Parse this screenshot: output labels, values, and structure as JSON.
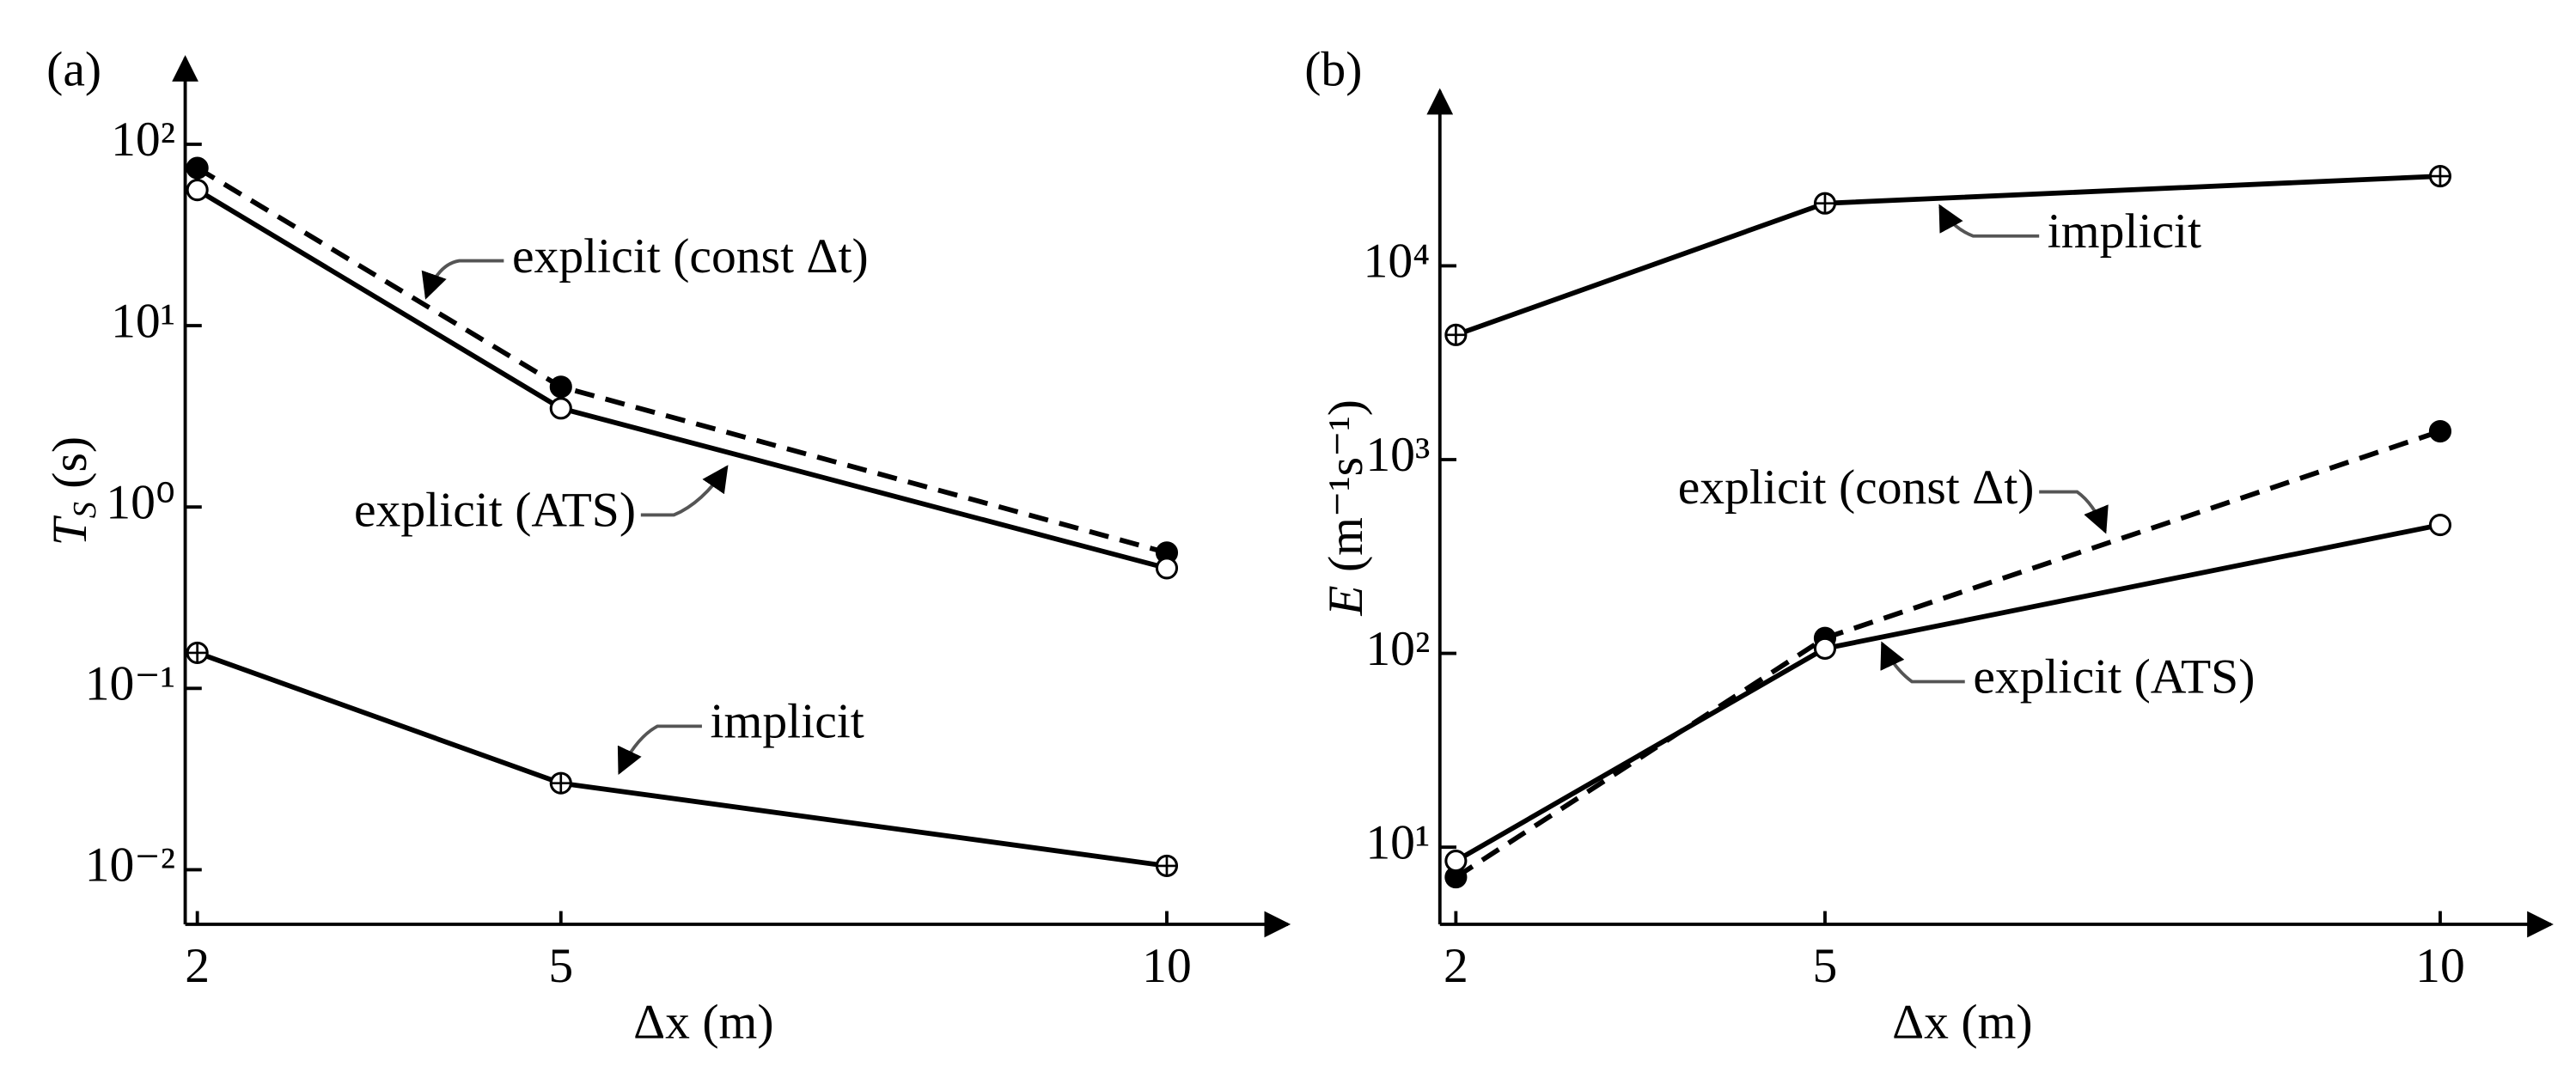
{
  "chart_data": [
    {
      "type": "line",
      "panel_label": "(a)",
      "xlabel": "Δx (m)",
      "ylabel": {
        "symbol": "T",
        "subscript": "S",
        "unit": "(s)"
      },
      "log_y": true,
      "x": [
        2,
        5,
        10
      ],
      "xlim": [
        1.9,
        11
      ],
      "xticks": [
        2,
        5,
        10
      ],
      "ylim": [
        0.005,
        300
      ],
      "yticks": [
        {
          "value": 0.01,
          "label": "10⁻²"
        },
        {
          "value": 0.1,
          "label": "10⁻¹"
        },
        {
          "value": 1,
          "label": "10⁰"
        },
        {
          "value": 10,
          "label": "10¹"
        },
        {
          "value": 100,
          "label": "10²"
        }
      ],
      "series": [
        {
          "name": "explicit (const Δt)",
          "color": "#000000",
          "style": "dashed",
          "marker": "filled",
          "values": [
            74,
            4.6,
            0.56
          ]
        },
        {
          "name": "explicit (ATS)",
          "color": "#000000",
          "style": "solid",
          "marker": "open",
          "values": [
            56,
            3.5,
            0.46
          ]
        },
        {
          "name": "implicit",
          "color": "#000000",
          "style": "solid",
          "marker": "crossed",
          "values": [
            0.157,
            0.03,
            0.0105
          ]
        }
      ]
    },
    {
      "type": "line",
      "panel_label": "(b)",
      "xlabel": "Δx (m)",
      "ylabel": {
        "symbol": "E",
        "unit": "(m⁻¹s⁻¹)"
      },
      "log_y": true,
      "x": [
        2,
        5,
        10
      ],
      "xlim": [
        1.87,
        10.9
      ],
      "xticks": [
        2,
        5,
        10
      ],
      "ylim": [
        4,
        80000
      ],
      "yticks": [
        {
          "value": 10,
          "label": "10¹"
        },
        {
          "value": 100,
          "label": "10²"
        },
        {
          "value": 1000,
          "label": "10³"
        },
        {
          "value": 10000,
          "label": "10⁴"
        }
      ],
      "series": [
        {
          "name": "implicit",
          "color": "#000000",
          "style": "solid",
          "marker": "crossed",
          "values": [
            4400,
            21000,
            29000
          ]
        },
        {
          "name": "explicit (const Δt)",
          "color": "#000000",
          "style": "dashed",
          "marker": "filled",
          "values": [
            7,
            120,
            1400
          ]
        },
        {
          "name": "explicit (ATS)",
          "color": "#000000",
          "style": "solid",
          "marker": "open",
          "values": [
            8.5,
            106,
            460
          ]
        }
      ]
    }
  ]
}
